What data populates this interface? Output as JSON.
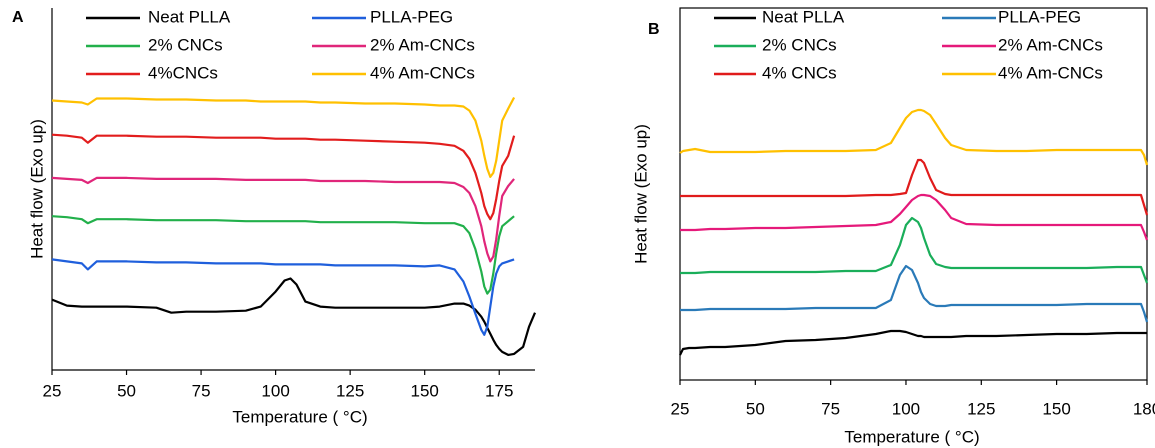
{
  "chart_data": [
    {
      "type": "line",
      "panel_label": "A",
      "xlabel": "Temperature ( °C)",
      "ylabel": "Heat flow (Exo up)",
      "xlim": [
        25,
        187
      ],
      "xticks": [
        25,
        50,
        75,
        100,
        125,
        150,
        175
      ],
      "ylim": [
        0,
        360
      ],
      "frame": false,
      "x": [
        25,
        30,
        35,
        37,
        40,
        50,
        60,
        65,
        70,
        80,
        90,
        95,
        100,
        103,
        105,
        107,
        110,
        115,
        120,
        130,
        140,
        150,
        155,
        160,
        163,
        165,
        167,
        169,
        170,
        171,
        172,
        173,
        174,
        175,
        176,
        178,
        180,
        183,
        185,
        187
      ],
      "series": [
        {
          "name": "Neat PLLA",
          "color": "#000000",
          "values": [
            70,
            64,
            63,
            63,
            63,
            63,
            62,
            57,
            58,
            58,
            59,
            63,
            78,
            89,
            91,
            85,
            68,
            63,
            62,
            62,
            62,
            62,
            63,
            66,
            66,
            64,
            60,
            53,
            48,
            42,
            36,
            30,
            25,
            21,
            18,
            15,
            16,
            23,
            43,
            57
          ]
        },
        {
          "name": "PLLA-PEG",
          "color": "#1f5fdc",
          "values": [
            110,
            108,
            106,
            100,
            108,
            108,
            107,
            107,
            107,
            106,
            106,
            106,
            105,
            105,
            105,
            105,
            105,
            105,
            104,
            104,
            104,
            103,
            104,
            100,
            88,
            73,
            56,
            40,
            35,
            43,
            63,
            83,
            96,
            103,
            106,
            108,
            110,
            null,
            null,
            null
          ]
        },
        {
          "name": "2% CNCs",
          "color": "#22b04b",
          "values": [
            153,
            152,
            150,
            146,
            150,
            150,
            149,
            149,
            149,
            149,
            148,
            148,
            148,
            148,
            148,
            148,
            148,
            147,
            147,
            147,
            147,
            146,
            146,
            146,
            143,
            136,
            120,
            98,
            83,
            76,
            80,
            96,
            116,
            133,
            143,
            148,
            153,
            null,
            null,
            null
          ]
        },
        {
          "name": "2% Am-CNCs",
          "color": "#e0267a",
          "values": [
            191,
            190,
            189,
            186,
            191,
            191,
            190,
            190,
            190,
            190,
            189,
            189,
            189,
            189,
            189,
            189,
            189,
            188,
            188,
            188,
            187,
            187,
            187,
            186,
            182,
            176,
            163,
            143,
            128,
            116,
            108,
            113,
            130,
            153,
            173,
            183,
            190,
            null,
            null,
            null
          ]
        },
        {
          "name": "4%CNCs",
          "color": "#e21d1d",
          "values": [
            234,
            233,
            231,
            226,
            233,
            233,
            232,
            232,
            232,
            231,
            231,
            231,
            230,
            230,
            230,
            230,
            230,
            229,
            229,
            228,
            227,
            226,
            225,
            223,
            218,
            210,
            196,
            176,
            163,
            155,
            150,
            156,
            170,
            188,
            203,
            213,
            233,
            null,
            null,
            null
          ]
        },
        {
          "name": "4% Am-CNCs",
          "color": "#ffc000",
          "values": [
            268,
            267,
            266,
            264,
            270,
            270,
            269,
            269,
            269,
            268,
            268,
            267,
            267,
            267,
            267,
            267,
            267,
            266,
            266,
            265,
            265,
            264,
            263,
            263,
            262,
            258,
            248,
            228,
            213,
            200,
            192,
            196,
            208,
            228,
            248,
            260,
            271,
            null,
            null,
            null
          ]
        }
      ]
    },
    {
      "type": "line",
      "panel_label": "B",
      "xlabel": "Temperature ( °C)",
      "ylabel": "Heat flow (Exo up)",
      "xlim": [
        25,
        180
      ],
      "xticks": [
        25,
        50,
        75,
        100,
        125,
        150,
        180
      ],
      "ylim": [
        0,
        372
      ],
      "frame": true,
      "x": [
        25,
        26,
        28,
        30,
        35,
        40,
        50,
        60,
        70,
        80,
        90,
        95,
        98,
        100,
        102,
        104,
        105,
        106,
        108,
        110,
        113,
        115,
        120,
        130,
        140,
        150,
        160,
        170,
        175,
        178,
        179,
        180
      ],
      "series": [
        {
          "name": "Neat PLLA",
          "color": "#000000",
          "values": [
            25,
            31,
            32,
            32,
            33,
            33,
            35,
            39,
            40,
            42,
            46,
            49,
            49,
            48,
            46,
            44,
            44,
            43,
            43,
            43,
            43,
            43,
            44,
            44,
            45,
            46,
            46,
            47,
            47,
            47,
            47,
            47
          ]
        },
        {
          "name": "PLLA-PEG",
          "color": "#2a7ab8",
          "values": [
            70,
            70,
            70,
            70,
            71,
            71,
            71,
            71,
            72,
            72,
            72,
            80,
            105,
            114,
            110,
            97,
            88,
            82,
            76,
            74,
            74,
            75,
            75,
            75,
            75,
            75,
            76,
            76,
            76,
            76,
            68,
            58
          ]
        },
        {
          "name": "2% CNCs",
          "color": "#1aae5a",
          "values": [
            107,
            107,
            107,
            107,
            108,
            108,
            108,
            108,
            108,
            109,
            109,
            115,
            135,
            155,
            162,
            158,
            152,
            142,
            125,
            116,
            113,
            112,
            112,
            112,
            112,
            112,
            112,
            113,
            113,
            113,
            105,
            97
          ]
        },
        {
          "name": "2% Am-CNCs",
          "color": "#e5197a",
          "values": [
            150,
            150,
            150,
            150,
            151,
            151,
            152,
            152,
            153,
            154,
            155,
            158,
            166,
            173,
            180,
            184,
            185,
            185,
            184,
            180,
            170,
            162,
            156,
            155,
            155,
            155,
            155,
            155,
            155,
            155,
            148,
            140
          ]
        },
        {
          "name": "4% CNCs",
          "color": "#e01b1b",
          "values": [
            184,
            184,
            184,
            184,
            184,
            184,
            184,
            184,
            184,
            184,
            185,
            185,
            186,
            187,
            205,
            220,
            220,
            217,
            202,
            190,
            186,
            185,
            185,
            185,
            185,
            185,
            185,
            185,
            185,
            185,
            175,
            165
          ]
        },
        {
          "name": "4% Am-CNCs",
          "color": "#ffc000",
          "values": [
            227,
            229,
            230,
            231,
            228,
            228,
            228,
            229,
            229,
            229,
            230,
            237,
            252,
            262,
            268,
            270,
            270,
            269,
            265,
            256,
            242,
            235,
            230,
            229,
            229,
            230,
            230,
            230,
            230,
            230,
            225,
            215
          ]
        }
      ]
    }
  ]
}
